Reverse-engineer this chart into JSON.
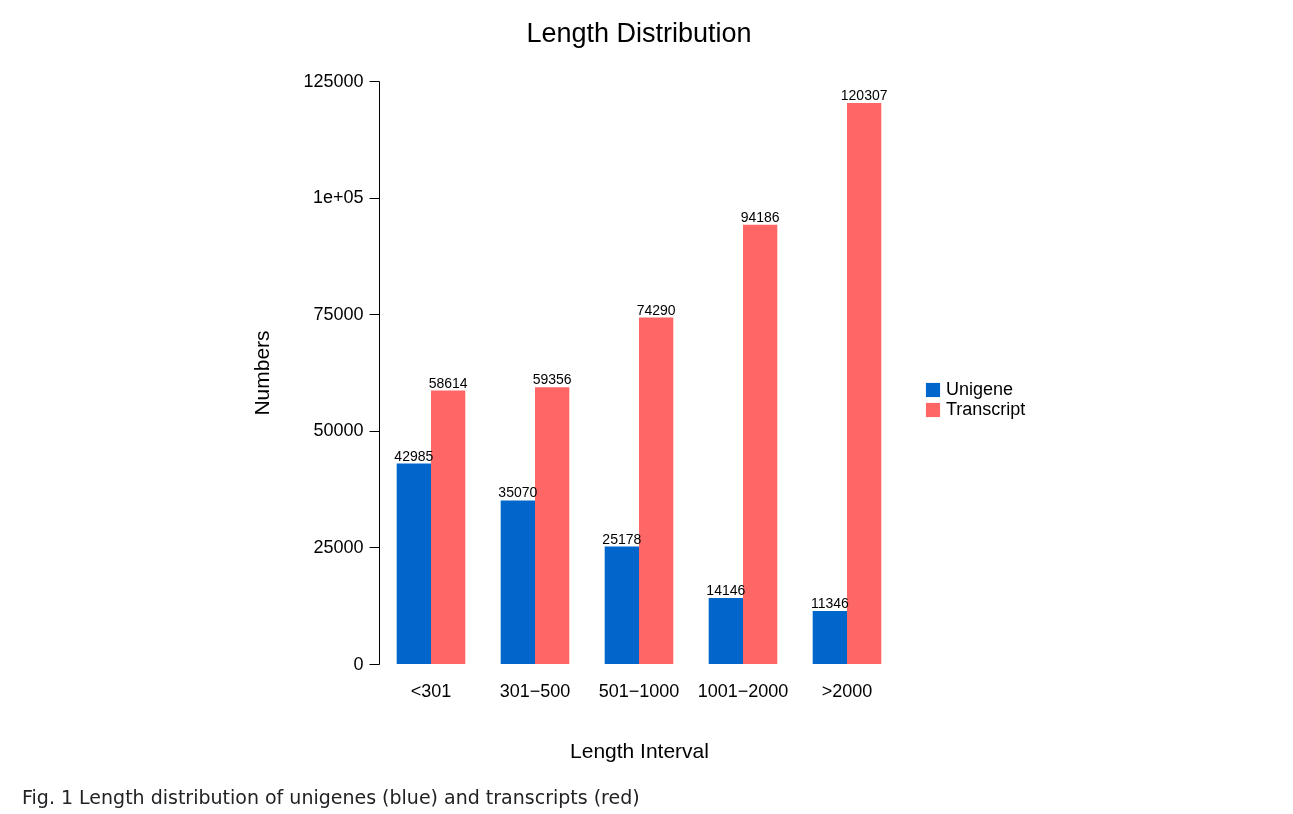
{
  "chart_data": {
    "type": "bar",
    "title": "Length Distribution",
    "xlabel": "Length Interval",
    "ylabel": "Numbers",
    "categories": [
      "<301",
      "301−500",
      "501−1000",
      "1001−2000",
      ">2000"
    ],
    "series": [
      {
        "name": "Unigene",
        "color": "#0066cc",
        "values": [
          42985,
          35070,
          25178,
          14146,
          11346
        ]
      },
      {
        "name": "Transcript",
        "color": "#ff6666",
        "values": [
          58614,
          59356,
          74290,
          94186,
          120307
        ]
      }
    ],
    "ylim": [
      0,
      125000
    ],
    "yticks": [
      0,
      25000,
      50000,
      75000,
      {
        "value": 100000,
        "label": "1e+05"
      },
      125000
    ],
    "grid": false,
    "legend": "right",
    "data_labels": true,
    "annotations": [
      "Fig. 1 Length distribution of unigenes (blue) and transcripts (red)"
    ]
  }
}
